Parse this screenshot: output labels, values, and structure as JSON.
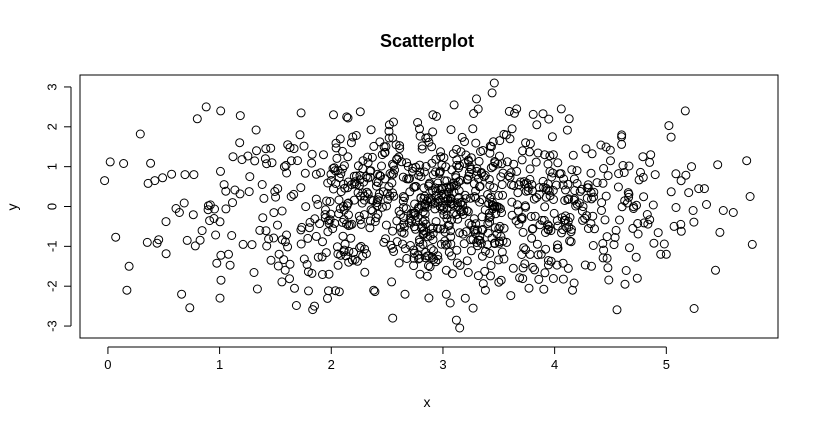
{
  "chart_data": {
    "type": "scatter",
    "title": "Scatterplot",
    "xlabel": "x",
    "ylabel": "y",
    "xlim": [
      -0.25,
      6.0
    ],
    "ylim": [
      -3.3,
      3.3
    ],
    "x_ticks": [
      0,
      1,
      2,
      3,
      4,
      5
    ],
    "y_ticks": [
      -3,
      -2,
      -1,
      0,
      1,
      2,
      3
    ],
    "grid": false,
    "marker": "open-circle",
    "n_points_approx": 1000,
    "point_color": "#000000",
    "series": [
      {
        "points": [
          [
            -0.03,
            0.65
          ],
          [
            0.02,
            1.12
          ],
          [
            0.07,
            -0.77
          ],
          [
            0.14,
            1.08
          ],
          [
            0.17,
            -2.1
          ],
          [
            0.19,
            -1.5
          ],
          [
            0.29,
            1.82
          ],
          [
            0.36,
            0.58
          ],
          [
            0.42,
            0.65
          ],
          [
            0.44,
            -0.92
          ],
          [
            0.49,
            0.72
          ],
          [
            0.52,
            -0.38
          ],
          [
            0.57,
            0.81
          ],
          [
            0.61,
            -0.05
          ],
          [
            0.64,
            -0.15
          ],
          [
            0.66,
            -2.2
          ],
          [
            0.69,
            0.8
          ],
          [
            0.71,
            -0.85
          ],
          [
            0.77,
            0.8
          ],
          [
            0.8,
            2.2
          ],
          [
            0.88,
            2.5
          ],
          [
            0.9,
            0.02
          ],
          [
            0.95,
            -0.3
          ],
          [
            1.01,
            2.4
          ],
          [
            1.04,
            0.55
          ],
          [
            1.08,
            -1.2
          ],
          [
            1.12,
            1.25
          ],
          [
            1.18,
            1.6
          ],
          [
            1.21,
            -0.95
          ],
          [
            1.27,
            0.75
          ],
          [
            1.33,
            1.4
          ],
          [
            1.36,
            -0.6
          ],
          [
            1.41,
            1.2
          ],
          [
            1.46,
            -1.35
          ],
          [
            1.52,
            0.45
          ],
          [
            1.58,
            1.0
          ],
          [
            1.61,
            1.55
          ],
          [
            1.63,
            -1.45
          ],
          [
            1.72,
            1.8
          ],
          [
            1.73,
            2.35
          ],
          [
            1.79,
            -0.8
          ],
          [
            1.85,
            -2.5
          ],
          [
            1.88,
            0.05
          ],
          [
            1.93,
            1.3
          ],
          [
            1.98,
            -1.7
          ],
          [
            2.02,
            2.3
          ],
          [
            2.06,
            0.9
          ],
          [
            2.1,
            -0.4
          ],
          [
            2.15,
            2.22
          ],
          [
            2.18,
            1.6
          ],
          [
            2.2,
            -1.15
          ],
          [
            2.24,
            0.35
          ],
          [
            2.26,
            2.38
          ],
          [
            2.3,
            -1.65
          ],
          [
            2.33,
            1.1
          ],
          [
            2.38,
            -2.1
          ],
          [
            2.42,
            0.6
          ],
          [
            2.47,
            -0.9
          ],
          [
            2.52,
            2.05
          ],
          [
            2.55,
            -2.8
          ],
          [
            2.58,
            1.55
          ],
          [
            2.62,
            -0.2
          ],
          [
            2.66,
            -2.2
          ],
          [
            2.7,
            0.7
          ],
          [
            2.74,
            -1.3
          ],
          [
            2.79,
            1.95
          ],
          [
            2.83,
            0.2
          ],
          [
            2.86,
            -1.75
          ],
          [
            2.91,
            2.3
          ],
          [
            2.95,
            -0.55
          ],
          [
            2.98,
            1.25
          ],
          [
            3.03,
            -1.6
          ],
          [
            3.06,
            0.45
          ],
          [
            3.1,
            2.55
          ],
          [
            3.12,
            -2.85
          ],
          [
            3.15,
            -3.05
          ],
          [
            3.18,
            -0.2
          ],
          [
            3.2,
            -2.3
          ],
          [
            3.24,
            1.0
          ],
          [
            3.27,
            -2.55
          ],
          [
            3.3,
            2.7
          ],
          [
            3.33,
            -0.75
          ],
          [
            3.38,
            -2.1
          ],
          [
            3.4,
            0.3
          ],
          [
            3.44,
            2.85
          ],
          [
            3.46,
            3.1
          ],
          [
            3.5,
            -1.9
          ],
          [
            3.53,
            0.55
          ],
          [
            3.57,
            -0.9
          ],
          [
            3.6,
            1.7
          ],
          [
            3.63,
            -1.55
          ],
          [
            3.66,
            2.45
          ],
          [
            3.7,
            -0.3
          ],
          [
            3.74,
            1.6
          ],
          [
            3.77,
            -2.05
          ],
          [
            3.8,
            0.4
          ],
          [
            3.84,
            2.05
          ],
          [
            3.88,
            -1.2
          ],
          [
            3.91,
            1.3
          ],
          [
            3.95,
            -0.5
          ],
          [
            3.98,
            1.75
          ],
          [
            4.03,
            -1.05
          ],
          [
            4.06,
            2.45
          ],
          [
            4.09,
            0.15
          ],
          [
            4.13,
            2.2
          ],
          [
            4.16,
            -2.1
          ],
          [
            4.2,
            0.9
          ],
          [
            4.25,
            -0.35
          ],
          [
            4.28,
            1.45
          ],
          [
            4.33,
            -1.5
          ],
          [
            4.38,
            0.6
          ],
          [
            4.42,
            -0.1
          ],
          [
            4.47,
            -1.3
          ],
          [
            4.5,
            1.15
          ],
          [
            4.55,
            -0.6
          ],
          [
            4.6,
            1.75
          ],
          [
            4.63,
            -1.95
          ],
          [
            4.66,
            0.35
          ],
          [
            4.7,
            -0.55
          ],
          [
            4.74,
            -1.8
          ],
          [
            4.79,
            1.25
          ],
          [
            4.83,
            -0.2
          ],
          [
            4.86,
            1.3
          ],
          [
            4.9,
            0.8
          ],
          [
            4.95,
            -1.2
          ],
          [
            5.0,
            -1.2
          ],
          [
            5.07,
            -0.5
          ],
          [
            5.13,
            -0.45
          ],
          [
            5.17,
            2.4
          ],
          [
            5.2,
            0.35
          ],
          [
            5.24,
            -0.1
          ],
          [
            5.29,
            0.45
          ],
          [
            5.36,
            0.05
          ],
          [
            5.44,
            -1.6
          ],
          [
            5.46,
            1.05
          ],
          [
            5.48,
            -0.65
          ],
          [
            5.51,
            -0.1
          ],
          [
            5.6,
            -0.15
          ],
          [
            5.72,
            1.15
          ],
          [
            5.75,
            0.25
          ],
          [
            5.77,
            -0.95
          ]
        ]
      }
    ]
  }
}
